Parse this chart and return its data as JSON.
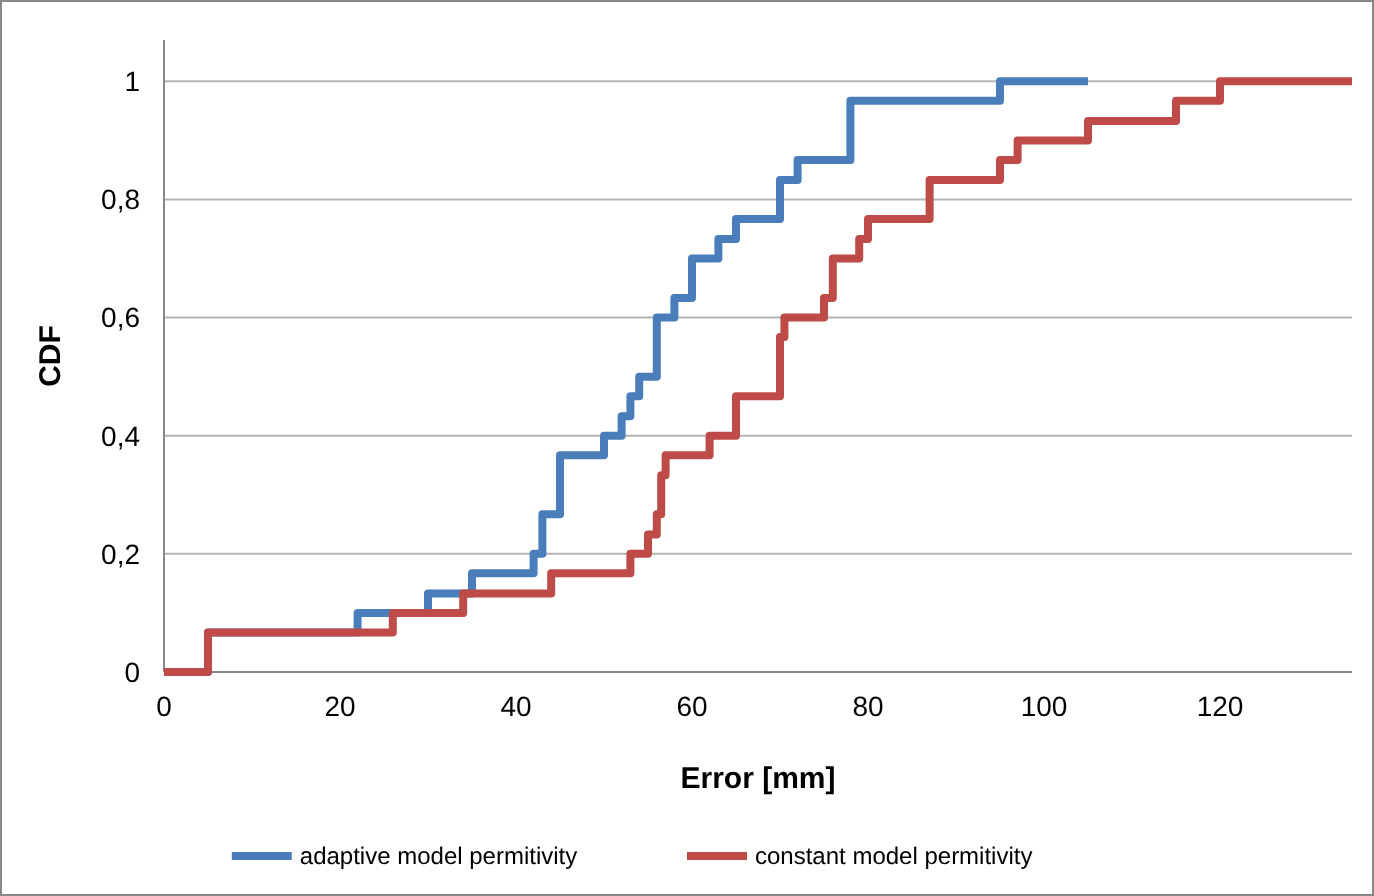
{
  "chart_data": {
    "type": "step",
    "xlabel": "Error [mm]",
    "ylabel": "CDF",
    "xlim": [
      0,
      135
    ],
    "xticks": [
      0,
      20,
      40,
      60,
      80,
      100,
      120
    ],
    "ylim": [
      0,
      1.07
    ],
    "yticks": [
      0,
      {
        "value": 0.2,
        "label": "0,2"
      },
      {
        "value": 0.4,
        "label": "0,4"
      },
      {
        "value": 0.6,
        "label": "0,6"
      },
      {
        "value": 0.8,
        "label": "0,8"
      },
      1
    ],
    "grid": "y",
    "legend": "bottom",
    "line_style": "solid",
    "marker": "none",
    "series": [
      {
        "name": "adaptive model permitivity",
        "color": "#4a7ebb",
        "x": [
          0,
          5,
          22,
          30,
          35,
          42,
          43,
          45,
          50,
          52,
          53,
          54,
          56,
          58,
          60,
          63,
          65,
          70,
          72,
          78,
          95,
          105
        ],
        "values": [
          0,
          0.067,
          0.1,
          0.133,
          0.167,
          0.2,
          0.267,
          0.367,
          0.4,
          0.433,
          0.467,
          0.5,
          0.6,
          0.633,
          0.7,
          0.733,
          0.767,
          0.833,
          0.867,
          0.967,
          1,
          1
        ]
      },
      {
        "name": "constant model permitivity",
        "color": "#be4b48",
        "x": [
          0,
          5,
          26,
          34,
          44,
          53,
          55,
          56,
          56.5,
          57,
          62,
          65,
          70,
          70.5,
          75,
          76,
          79,
          80,
          87,
          95,
          97,
          105,
          115,
          120,
          135
        ],
        "values": [
          0,
          0.067,
          0.1,
          0.133,
          0.167,
          0.2,
          0.233,
          0.267,
          0.333,
          0.367,
          0.4,
          0.467,
          0.567,
          0.6,
          0.633,
          0.7,
          0.733,
          0.767,
          0.833,
          0.867,
          0.9,
          0.933,
          0.967,
          1,
          1
        ]
      }
    ]
  }
}
